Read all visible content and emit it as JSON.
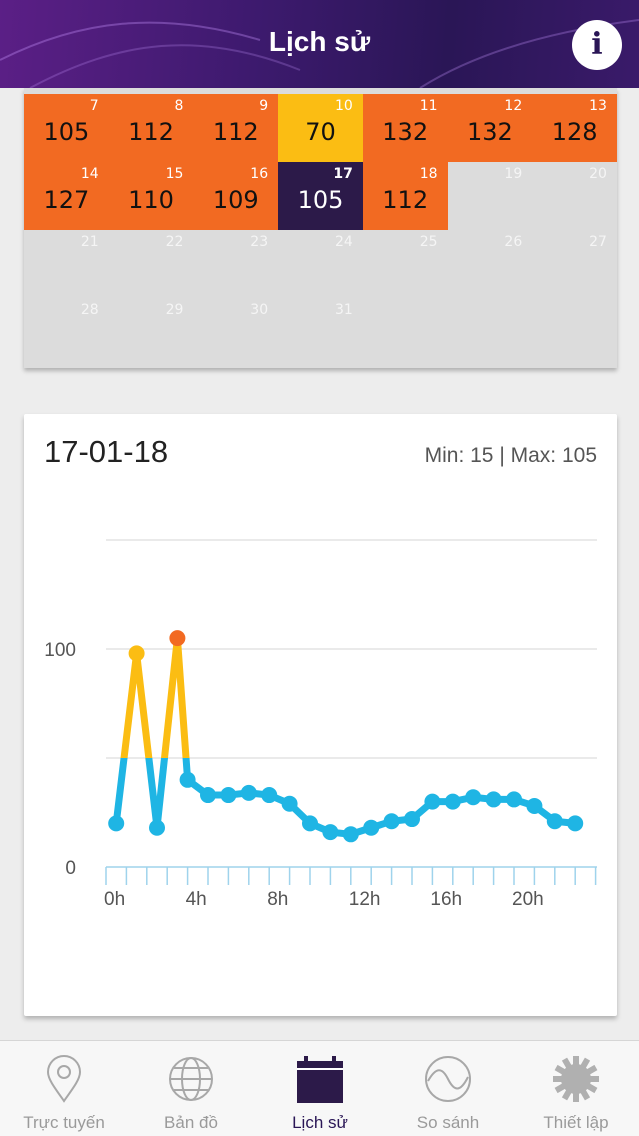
{
  "header": {
    "title": "Lịch sử",
    "info_label": "i"
  },
  "calendar": {
    "rows": [
      [
        {
          "day": "7",
          "value": "105",
          "level": "orange"
        },
        {
          "day": "8",
          "value": "112",
          "level": "orange"
        },
        {
          "day": "9",
          "value": "112",
          "level": "orange"
        },
        {
          "day": "10",
          "value": "70",
          "level": "yellow"
        },
        {
          "day": "11",
          "value": "132",
          "level": "orange"
        },
        {
          "day": "12",
          "value": "132",
          "level": "orange"
        },
        {
          "day": "13",
          "value": "128",
          "level": "orange"
        }
      ],
      [
        {
          "day": "14",
          "value": "127",
          "level": "orange"
        },
        {
          "day": "15",
          "value": "110",
          "level": "orange"
        },
        {
          "day": "16",
          "value": "109",
          "level": "orange"
        },
        {
          "day": "17",
          "value": "105",
          "level": "selected"
        },
        {
          "day": "18",
          "value": "112",
          "level": "orange"
        },
        {
          "day": "19",
          "value": "",
          "level": "empty"
        },
        {
          "day": "20",
          "value": "",
          "level": "empty"
        }
      ],
      [
        {
          "day": "21",
          "value": "",
          "level": "empty"
        },
        {
          "day": "22",
          "value": "",
          "level": "empty"
        },
        {
          "day": "23",
          "value": "",
          "level": "empty"
        },
        {
          "day": "24",
          "value": "",
          "level": "empty"
        },
        {
          "day": "25",
          "value": "",
          "level": "empty"
        },
        {
          "day": "26",
          "value": "",
          "level": "empty"
        },
        {
          "day": "27",
          "value": "",
          "level": "empty"
        }
      ],
      [
        {
          "day": "28",
          "value": "",
          "level": "empty"
        },
        {
          "day": "29",
          "value": "",
          "level": "empty"
        },
        {
          "day": "30",
          "value": "",
          "level": "empty"
        },
        {
          "day": "31",
          "value": "",
          "level": "empty"
        }
      ]
    ],
    "colors": {
      "orange": "#f26a22",
      "yellow": "#fbbd13",
      "selected": "#2c1a49",
      "empty": "#dcdcdc"
    }
  },
  "chart": {
    "date": "17-01-18",
    "min_max": "Min: 15 | Max: 105"
  },
  "chart_data": {
    "type": "line",
    "x_tick_labels": [
      "0h",
      "4h",
      "8h",
      "12h",
      "16h",
      "20h"
    ],
    "y_tick_labels": [
      "100",
      "0"
    ],
    "ylim": [
      0,
      150
    ],
    "grid": true,
    "thresholds": [
      50,
      100
    ],
    "series": [
      {
        "x": [
          0.5,
          1.5,
          2.5,
          3.5,
          4,
          5,
          6,
          7,
          8,
          9,
          10,
          11,
          12,
          13,
          14,
          15,
          16,
          17,
          18,
          19,
          20,
          21,
          22,
          23
        ],
        "values": [
          20,
          98,
          18,
          105,
          40,
          33,
          33,
          34,
          33,
          29,
          20,
          16,
          15,
          18,
          21,
          22,
          30,
          30,
          32,
          31,
          31,
          28,
          21,
          20
        ]
      }
    ],
    "colors": {
      "low": "#1fb5e4",
      "mid": "#fbbd13",
      "high": "#f26a22",
      "grid": "#e3e3e3",
      "axis": "#9fd3ec"
    }
  },
  "tabs": [
    {
      "label": "Trực tuyến",
      "icon": "map-pin-icon",
      "active": false
    },
    {
      "label": "Bản đồ",
      "icon": "globe-icon",
      "active": false
    },
    {
      "label": "Lịch sử",
      "icon": "calendar-icon",
      "active": true
    },
    {
      "label": "So sánh",
      "icon": "compare-wave-icon",
      "active": false
    },
    {
      "label": "Thiết lập",
      "icon": "gear-icon",
      "active": false
    }
  ]
}
